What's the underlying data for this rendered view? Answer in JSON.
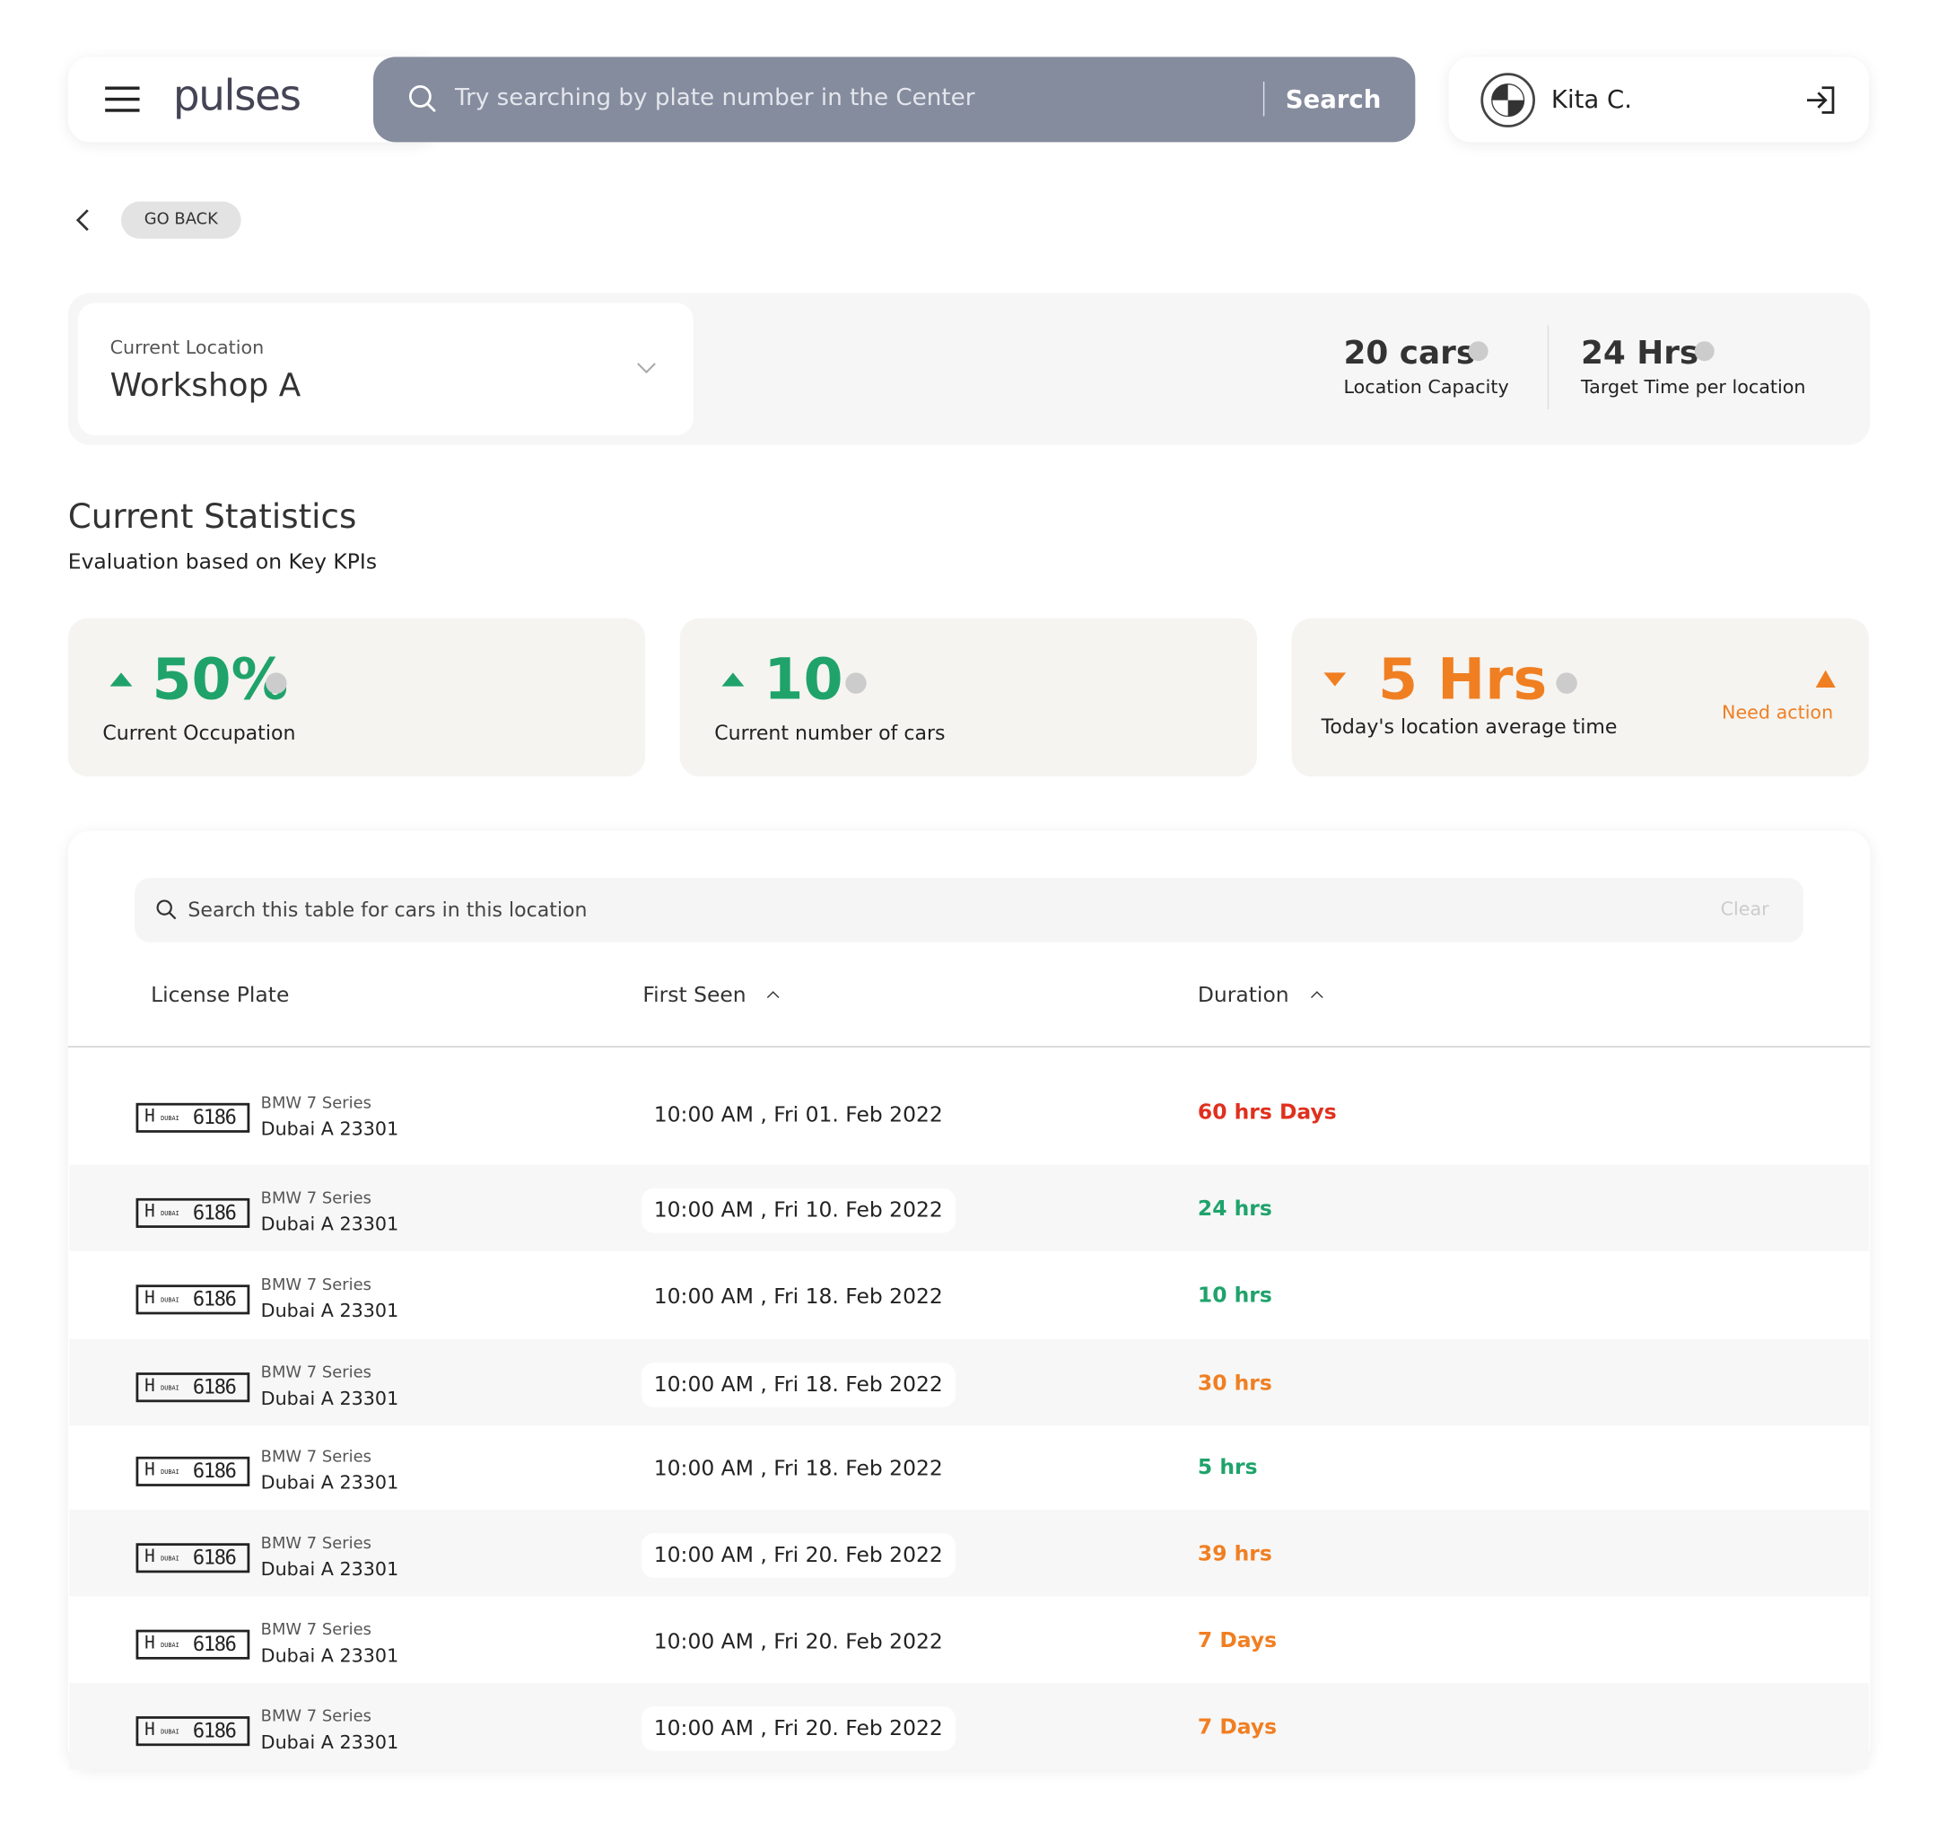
{
  "header": {
    "logo": "pulses",
    "search_placeholder": "Try searching by plate number in the Center",
    "search_button": "Search",
    "user": "Kita C."
  },
  "nav": {
    "back": "GO BACK"
  },
  "location": {
    "label": "Current Location",
    "name": "Workshop A",
    "capacity": "20 cars",
    "capacity_label": "Location Capacity",
    "target": "24 Hrs",
    "target_label": "Target Time per location"
  },
  "statistics": {
    "title": "Current Statistics",
    "subtitle": "Evaluation based on Key KPIs",
    "cards": [
      {
        "value": "50%",
        "label": "Current Occupation",
        "trend": "up",
        "color": "#1fa36b"
      },
      {
        "value": "10",
        "label": "Current number of cars",
        "trend": "up",
        "color": "#1fa36b"
      },
      {
        "value": "5 Hrs",
        "label": "Today's location average time",
        "trend": "down",
        "color": "#f07f22",
        "alert": "Need action"
      }
    ]
  },
  "table": {
    "search_placeholder": "Search this table for cars in this location",
    "clear": "Clear",
    "columns": [
      "License Plate",
      "First Seen",
      "Duration"
    ],
    "rows": [
      {
        "plate_code": "H",
        "plate_emirate": "DUBAI",
        "plate_number": "6186",
        "model": "BMW 7 Series",
        "location": "Dubai A 23301",
        "first_seen": "10:00 AM , Fri 01. Feb 2022",
        "duration": "60 hrs Days",
        "color": "#e0301e"
      },
      {
        "plate_code": "H",
        "plate_emirate": "DUBAI",
        "plate_number": "6186",
        "model": "BMW 7 Series",
        "location": "Dubai A 23301",
        "first_seen": "10:00 AM , Fri 10. Feb 2022",
        "duration": "24 hrs",
        "color": "#1fa36b"
      },
      {
        "plate_code": "H",
        "plate_emirate": "DUBAI",
        "plate_number": "6186",
        "model": "BMW 7 Series",
        "location": "Dubai A 23301",
        "first_seen": "10:00 AM , Fri 18. Feb 2022",
        "duration": "10 hrs",
        "color": "#1fa36b"
      },
      {
        "plate_code": "H",
        "plate_emirate": "DUBAI",
        "plate_number": "6186",
        "model": "BMW 7 Series",
        "location": "Dubai A 23301",
        "first_seen": "10:00 AM , Fri 18. Feb 2022",
        "duration": "30 hrs",
        "color": "#f07f22"
      },
      {
        "plate_code": "H",
        "plate_emirate": "DUBAI",
        "plate_number": "6186",
        "model": "BMW 7 Series",
        "location": "Dubai A 23301",
        "first_seen": "10:00 AM , Fri 18. Feb 2022",
        "duration": "5 hrs",
        "color": "#1fa36b"
      },
      {
        "plate_code": "H",
        "plate_emirate": "DUBAI",
        "plate_number": "6186",
        "model": "BMW 7 Series",
        "location": "Dubai A 23301",
        "first_seen": "10:00 AM , Fri 20. Feb 2022",
        "duration": "39 hrs",
        "color": "#f07f22"
      },
      {
        "plate_code": "H",
        "plate_emirate": "DUBAI",
        "plate_number": "6186",
        "model": "BMW 7 Series",
        "location": "Dubai A 23301",
        "first_seen": "10:00 AM , Fri 20. Feb 2022",
        "duration": "7 Days",
        "color": "#f07f22"
      },
      {
        "plate_code": "H",
        "plate_emirate": "DUBAI",
        "plate_number": "6186",
        "model": "BMW 7 Series",
        "location": "Dubai A 23301",
        "first_seen": "10:00 AM , Fri 20. Feb 2022",
        "duration": "7 Days",
        "color": "#f07f22"
      }
    ]
  }
}
